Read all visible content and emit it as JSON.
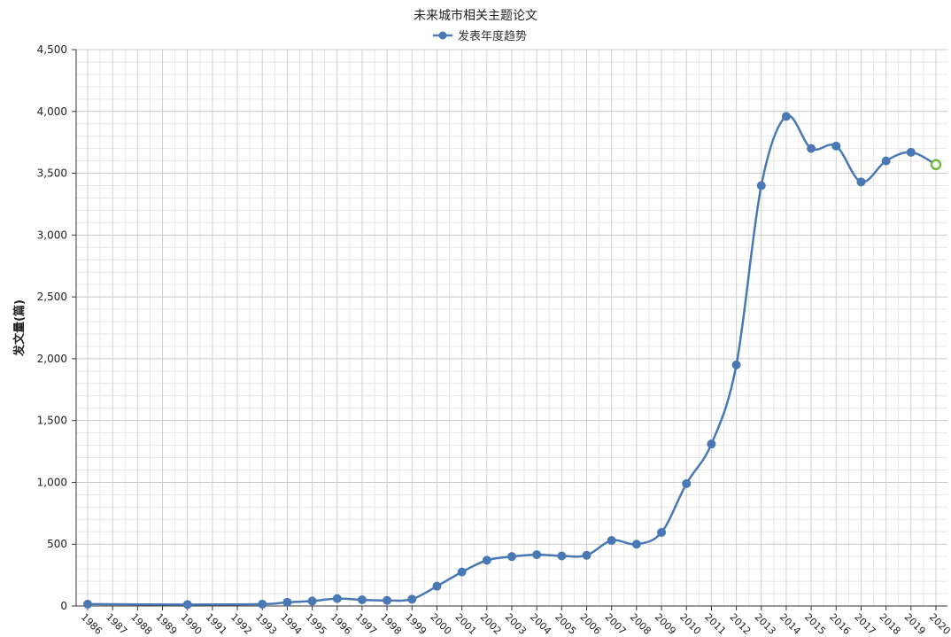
{
  "chart_data": {
    "type": "line",
    "title": "未来城市相关主题论文",
    "ylabel": "发文量(篇)",
    "xlabel": "",
    "ylim": [
      0,
      4500
    ],
    "yticks": [
      0,
      500,
      1000,
      1500,
      2000,
      2500,
      3000,
      3500,
      4000,
      4500
    ],
    "ytick_labels": [
      "0",
      "500",
      "1,000",
      "1,500",
      "2,000",
      "2,500",
      "3,000",
      "3,500",
      "4,000",
      "4,500"
    ],
    "categories": [
      "1986",
      "1987",
      "1988",
      "1989",
      "1990",
      "1991",
      "1992",
      "1993",
      "1994",
      "1995",
      "1996",
      "1997",
      "1998",
      "1999",
      "2000",
      "2001",
      "2002",
      "2003",
      "2004",
      "2005",
      "2006",
      "2007",
      "2008",
      "2009",
      "2010",
      "2011",
      "2012",
      "2013",
      "2014",
      "2015",
      "2016",
      "2017",
      "2018",
      "2019",
      "2020"
    ],
    "grid": true,
    "legend_position": "top-center",
    "series": [
      {
        "name": "发表年度趋势",
        "color": "#4a78b4",
        "highlight_color": "#6cbb3c",
        "points": [
          {
            "x": "1986",
            "y": 15
          },
          {
            "x": "1990",
            "y": 12
          },
          {
            "x": "1993",
            "y": 15
          },
          {
            "x": "1994",
            "y": 30
          },
          {
            "x": "1995",
            "y": 40
          },
          {
            "x": "1996",
            "y": 60
          },
          {
            "x": "1997",
            "y": 50
          },
          {
            "x": "1998",
            "y": 45
          },
          {
            "x": "1999",
            "y": 55
          },
          {
            "x": "2000",
            "y": 160
          },
          {
            "x": "2001",
            "y": 275
          },
          {
            "x": "2002",
            "y": 370
          },
          {
            "x": "2003",
            "y": 400
          },
          {
            "x": "2004",
            "y": 415
          },
          {
            "x": "2005",
            "y": 405
          },
          {
            "x": "2006",
            "y": 410
          },
          {
            "x": "2007",
            "y": 530
          },
          {
            "x": "2008",
            "y": 500
          },
          {
            "x": "2009",
            "y": 595
          },
          {
            "x": "2010",
            "y": 990
          },
          {
            "x": "2011",
            "y": 1310
          },
          {
            "x": "2012",
            "y": 1950
          },
          {
            "x": "2013",
            "y": 3400
          },
          {
            "x": "2014",
            "y": 3960
          },
          {
            "x": "2015",
            "y": 3700
          },
          {
            "x": "2016",
            "y": 3720
          },
          {
            "x": "2017",
            "y": 3430
          },
          {
            "x": "2018",
            "y": 3600
          },
          {
            "x": "2019",
            "y": 3670
          },
          {
            "x": "2020",
            "y": 3570,
            "highlight": true
          }
        ]
      }
    ]
  }
}
